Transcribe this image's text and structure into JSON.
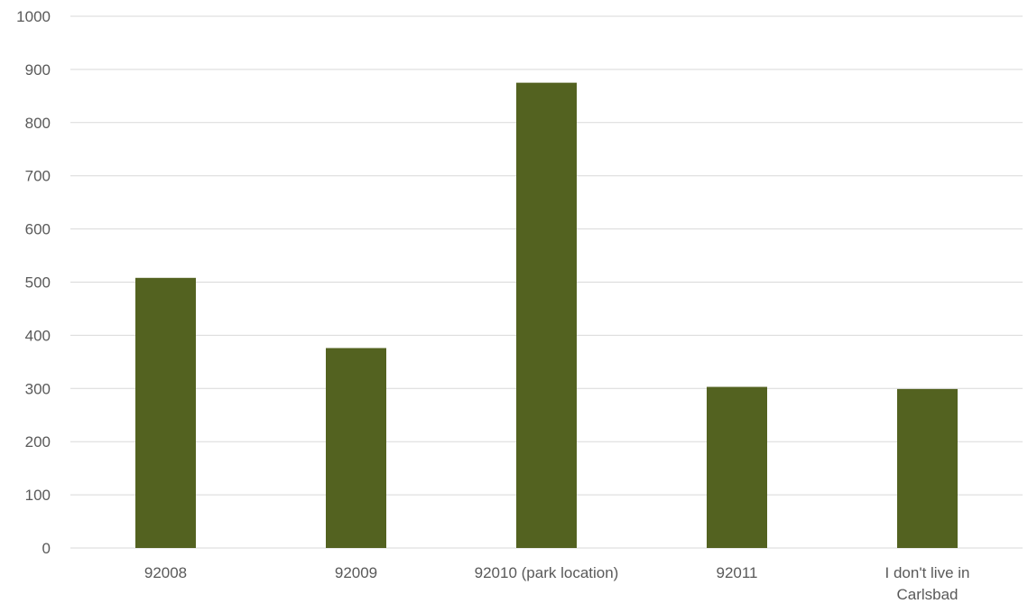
{
  "chart_data": {
    "type": "bar",
    "title": "",
    "xlabel": "",
    "ylabel": "",
    "categories": [
      [
        "92008"
      ],
      [
        "92009"
      ],
      [
        "92010 (park location)"
      ],
      [
        "92011"
      ],
      [
        "I don't live in",
        "Carlsbad"
      ]
    ],
    "values": [
      508,
      376,
      875,
      303,
      299
    ],
    "ylim": [
      0,
      1000
    ],
    "yticks": [
      "0",
      "100",
      "200",
      "300",
      "400",
      "500",
      "600",
      "700",
      "800",
      "900",
      "1000"
    ],
    "grid": true,
    "legend": "none",
    "bar_color": "#536220"
  }
}
